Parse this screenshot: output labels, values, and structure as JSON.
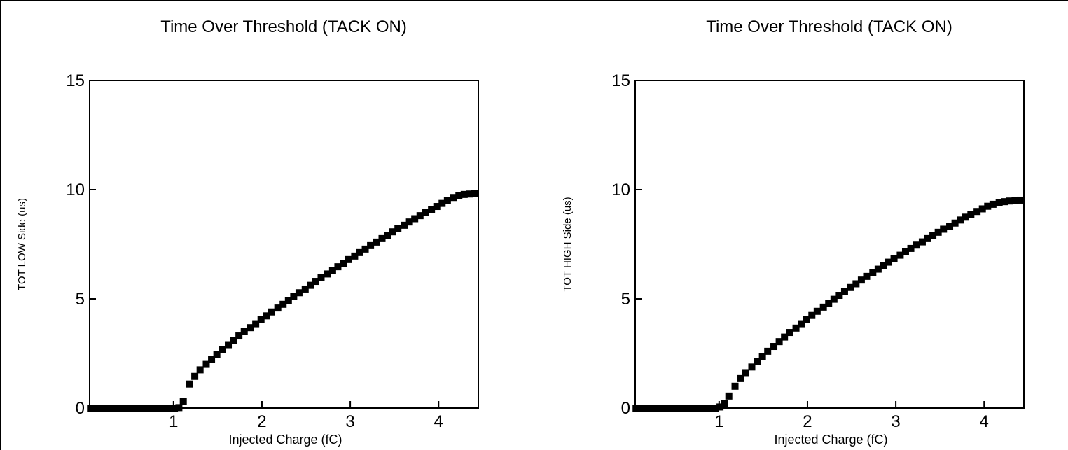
{
  "chart_data": [
    {
      "type": "scatter",
      "title": "Time Over Threshold (TACK ON)",
      "xlabel": "Injected Charge (fC)",
      "ylabel": "TOT LOW Side (us)",
      "xlim": [
        0.05,
        4.45
      ],
      "ylim": [
        0,
        15
      ],
      "xticks": [
        1,
        2,
        3,
        4
      ],
      "yticks": [
        0,
        5,
        10,
        15
      ],
      "grid": false,
      "x": [
        0.06,
        0.11,
        0.16,
        0.21,
        0.26,
        0.31,
        0.36,
        0.41,
        0.46,
        0.51,
        0.56,
        0.61,
        0.66,
        0.71,
        0.76,
        0.81,
        0.86,
        0.91,
        0.96,
        1.01,
        1.06,
        1.11,
        1.18,
        1.24,
        1.3,
        1.37,
        1.43,
        1.49,
        1.55,
        1.62,
        1.68,
        1.74,
        1.8,
        1.87,
        1.93,
        1.99,
        2.05,
        2.11,
        2.18,
        2.24,
        2.3,
        2.36,
        2.42,
        2.49,
        2.55,
        2.61,
        2.67,
        2.74,
        2.8,
        2.86,
        2.92,
        2.98,
        3.05,
        3.11,
        3.17,
        3.23,
        3.3,
        3.36,
        3.42,
        3.48,
        3.54,
        3.61,
        3.67,
        3.73,
        3.79,
        3.85,
        3.92,
        3.98,
        4.04,
        4.1,
        4.17,
        4.23,
        4.29,
        4.35,
        4.41
      ],
      "y": [
        0,
        0,
        0,
        0,
        0,
        0,
        0,
        0,
        0,
        0,
        0,
        0,
        0,
        0,
        0,
        0,
        0,
        0,
        0,
        0,
        0.02,
        0.3,
        1.1,
        1.45,
        1.75,
        2.0,
        2.22,
        2.45,
        2.68,
        2.9,
        3.1,
        3.3,
        3.5,
        3.68,
        3.86,
        4.04,
        4.22,
        4.4,
        4.58,
        4.75,
        4.92,
        5.1,
        5.28,
        5.45,
        5.62,
        5.8,
        5.97,
        6.14,
        6.3,
        6.47,
        6.63,
        6.8,
        6.96,
        7.12,
        7.28,
        7.44,
        7.6,
        7.76,
        7.91,
        8.07,
        8.22,
        8.37,
        8.52,
        8.67,
        8.81,
        8.95,
        9.09,
        9.23,
        9.37,
        9.51,
        9.64,
        9.72,
        9.78,
        9.8,
        9.82
      ]
    },
    {
      "type": "scatter",
      "title": "Time Over Threshold (TACK ON)",
      "xlabel": "Injected Charge (fC)",
      "ylabel": "TOT HIGH Side (us)",
      "xlim": [
        0.05,
        4.45
      ],
      "ylim": [
        0,
        15
      ],
      "xticks": [
        1,
        2,
        3,
        4
      ],
      "yticks": [
        0,
        5,
        10,
        15
      ],
      "grid": false,
      "x": [
        0.06,
        0.11,
        0.16,
        0.21,
        0.26,
        0.31,
        0.36,
        0.41,
        0.46,
        0.51,
        0.56,
        0.61,
        0.66,
        0.71,
        0.76,
        0.81,
        0.86,
        0.91,
        0.96,
        1.01,
        1.06,
        1.11,
        1.18,
        1.24,
        1.3,
        1.37,
        1.43,
        1.49,
        1.55,
        1.62,
        1.68,
        1.74,
        1.8,
        1.87,
        1.93,
        1.99,
        2.05,
        2.11,
        2.18,
        2.24,
        2.3,
        2.36,
        2.42,
        2.49,
        2.55,
        2.61,
        2.67,
        2.74,
        2.8,
        2.86,
        2.92,
        2.98,
        3.05,
        3.11,
        3.17,
        3.23,
        3.3,
        3.36,
        3.42,
        3.48,
        3.54,
        3.61,
        3.67,
        3.73,
        3.79,
        3.85,
        3.92,
        3.98,
        4.04,
        4.1,
        4.17,
        4.23,
        4.29,
        4.35,
        4.41
      ],
      "y": [
        0,
        0,
        0,
        0,
        0,
        0,
        0,
        0,
        0,
        0,
        0,
        0,
        0,
        0,
        0,
        0,
        0,
        0,
        0,
        0.05,
        0.2,
        0.55,
        1.0,
        1.35,
        1.62,
        1.88,
        2.12,
        2.36,
        2.6,
        2.82,
        3.04,
        3.25,
        3.46,
        3.66,
        3.86,
        4.05,
        4.24,
        4.43,
        4.62,
        4.8,
        4.98,
        5.16,
        5.34,
        5.52,
        5.69,
        5.86,
        6.03,
        6.2,
        6.36,
        6.52,
        6.68,
        6.84,
        7.0,
        7.16,
        7.31,
        7.46,
        7.61,
        7.76,
        7.91,
        8.05,
        8.19,
        8.33,
        8.47,
        8.61,
        8.74,
        8.87,
        9.0,
        9.12,
        9.24,
        9.33,
        9.4,
        9.45,
        9.48,
        9.5,
        9.52
      ]
    }
  ]
}
